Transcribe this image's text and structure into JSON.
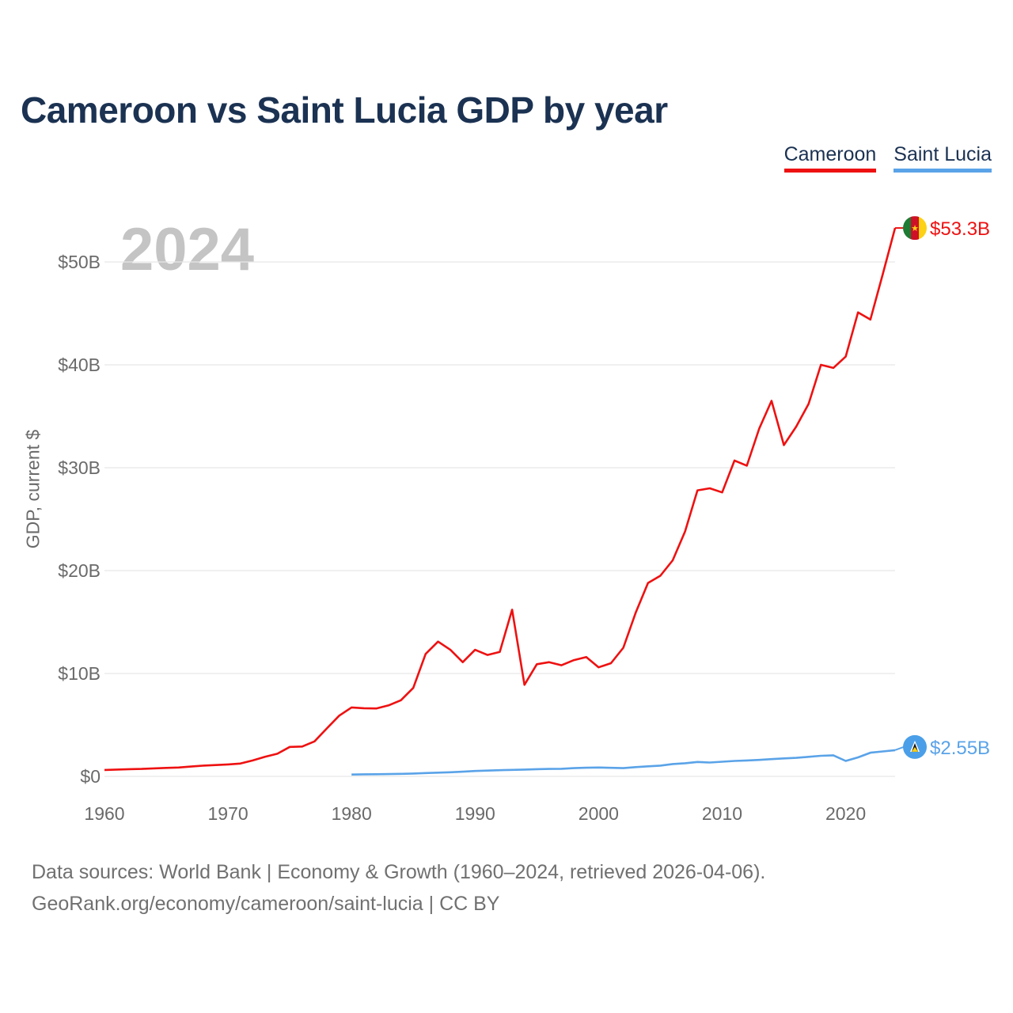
{
  "title": "Cameroon vs Saint Lucia GDP by year",
  "year_watermark": "2024",
  "legend": [
    {
      "label": "Cameroon",
      "color": "#ee1111"
    },
    {
      "label": "Saint Lucia",
      "color": "#5aa3e8"
    }
  ],
  "footer": {
    "line1": "Data sources: World Bank | Economy & Growth (1960–2024, retrieved 2026-04-06).",
    "line2": "GeoRank.org/economy/cameroon/saint-lucia | CC BY"
  },
  "chart_data": {
    "type": "line",
    "title": "Cameroon vs Saint Lucia GDP by year",
    "xlabel": "",
    "ylabel": "GDP, current $",
    "xlim": [
      1960,
      2024
    ],
    "ylim": [
      0,
      55
    ],
    "x_ticks": [
      1960,
      1970,
      1980,
      1990,
      2000,
      2010,
      2020
    ],
    "x_tick_labels": [
      "1960",
      "1970",
      "1980",
      "1990",
      "2000",
      "2010",
      "2020"
    ],
    "y_ticks": [
      0,
      10,
      20,
      30,
      40,
      50
    ],
    "y_tick_labels": [
      "$0",
      "$10B",
      "$20B",
      "$30B",
      "$40B",
      "$50B"
    ],
    "grid": true,
    "legend_position": "top-right",
    "series": [
      {
        "name": "Cameroon",
        "color": "#ee1111",
        "end_label": "$53.3B",
        "flag": "cameroon-flag",
        "x": [
          1960,
          1961,
          1962,
          1963,
          1964,
          1965,
          1966,
          1967,
          1968,
          1969,
          1970,
          1971,
          1972,
          1973,
          1974,
          1975,
          1976,
          1977,
          1978,
          1979,
          1980,
          1981,
          1982,
          1983,
          1984,
          1985,
          1986,
          1987,
          1988,
          1989,
          1990,
          1991,
          1992,
          1993,
          1994,
          1995,
          1996,
          1997,
          1998,
          1999,
          2000,
          2001,
          2002,
          2003,
          2004,
          2005,
          2006,
          2007,
          2008,
          2009,
          2010,
          2011,
          2012,
          2013,
          2014,
          2015,
          2016,
          2017,
          2018,
          2019,
          2020,
          2021,
          2022,
          2023,
          2024
        ],
        "values": [
          0.62,
          0.66,
          0.7,
          0.72,
          0.78,
          0.82,
          0.86,
          0.95,
          1.05,
          1.1,
          1.16,
          1.25,
          1.55,
          1.9,
          2.2,
          2.86,
          2.9,
          3.4,
          4.66,
          5.9,
          6.7,
          6.62,
          6.6,
          6.9,
          7.4,
          8.6,
          11.9,
          13.1,
          12.3,
          11.1,
          12.3,
          11.8,
          12.1,
          16.2,
          8.9,
          10.9,
          11.1,
          10.8,
          11.3,
          11.6,
          10.6,
          11.0,
          12.5,
          15.9,
          18.8,
          19.5,
          21.0,
          23.8,
          27.8,
          28.0,
          27.6,
          30.7,
          30.2,
          33.8,
          36.5,
          32.2,
          34.0,
          36.2,
          40.0,
          39.7,
          40.8,
          45.1,
          44.4,
          48.8,
          53.3
        ]
      },
      {
        "name": "Saint Lucia",
        "color": "#5aa3e8",
        "end_label": "$2.55B",
        "flag": "saint-lucia-flag",
        "x": [
          1980,
          1981,
          1982,
          1983,
          1984,
          1985,
          1986,
          1987,
          1988,
          1989,
          1990,
          1991,
          1992,
          1993,
          1994,
          1995,
          1996,
          1997,
          1998,
          1999,
          2000,
          2001,
          2002,
          2003,
          2004,
          2005,
          2006,
          2007,
          2008,
          2009,
          2010,
          2011,
          2012,
          2013,
          2014,
          2015,
          2016,
          2017,
          2018,
          2019,
          2020,
          2021,
          2022,
          2023,
          2024
        ],
        "values": [
          0.18,
          0.2,
          0.21,
          0.22,
          0.25,
          0.28,
          0.32,
          0.36,
          0.4,
          0.45,
          0.52,
          0.56,
          0.6,
          0.63,
          0.66,
          0.7,
          0.72,
          0.74,
          0.8,
          0.84,
          0.86,
          0.83,
          0.8,
          0.9,
          0.98,
          1.05,
          1.2,
          1.28,
          1.4,
          1.35,
          1.42,
          1.5,
          1.55,
          1.6,
          1.68,
          1.75,
          1.8,
          1.9,
          2.0,
          2.05,
          1.5,
          1.85,
          2.3,
          2.42,
          2.55
        ]
      }
    ]
  }
}
